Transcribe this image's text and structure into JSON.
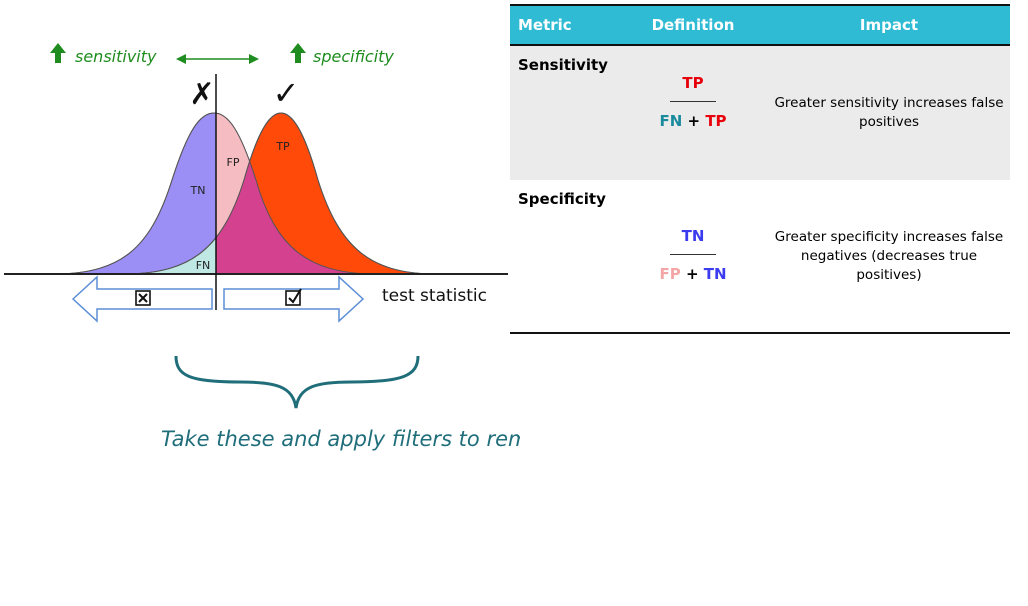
{
  "diagram": {
    "sensitivity_label": "sensitivity",
    "specificity_label": "specificity",
    "reject_mark": "✗",
    "accept_mark": "✓",
    "region_tn": "TN",
    "region_fp": "FP",
    "region_tp": "TP",
    "region_fn": "FN",
    "axis_label": "test statistic",
    "caption": "Take these and apply filters to remove FPs",
    "colors": {
      "negative_curve": "#9b8ff5",
      "positive_curve": "#ff4a0a",
      "overlap": "#d4428f",
      "fp_region": "#f5bcc2",
      "fn_region": "#bfe8e5",
      "green": "#1e8c1e",
      "teal_text": "#1f6e7a",
      "arrow_outline": "#5b8ed6"
    },
    "icons": [
      "up-arrow-icon",
      "double-arrow-icon",
      "checkbox-cross-icon",
      "checkbox-check-icon",
      "curly-brace-icon"
    ]
  },
  "table": {
    "headers": {
      "metric": "Metric",
      "definition": "Definition",
      "impact": "Impact"
    },
    "header_color": "#2ebbd3",
    "rows": [
      {
        "metric": "Sensitivity",
        "numerator": "TP",
        "denominator_left": "FN",
        "plus": "+",
        "denominator_right": "TP",
        "impact": "Greater sensitivity increases false positives"
      },
      {
        "metric": "Specificity",
        "numerator": "TN",
        "denominator_left": "FP",
        "plus": "+",
        "denominator_right": "TN",
        "impact": "Greater specificity increases false negatives (decreases true positives)"
      }
    ]
  }
}
